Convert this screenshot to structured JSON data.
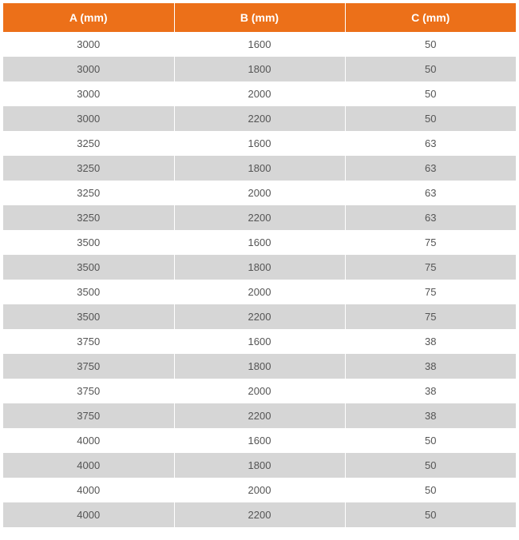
{
  "table": {
    "type": "table",
    "header_bg_color": "#ec7019",
    "header_text_color": "#ffffff",
    "header_fontsize": 14,
    "row_odd_bg": "#ffffff",
    "row_even_bg": "#d6d6d6",
    "cell_text_color": "#555555",
    "cell_fontsize": 13,
    "columns": [
      {
        "label": "A (mm)",
        "width": "33.33%",
        "align": "center"
      },
      {
        "label": "B (mm)",
        "width": "33.33%",
        "align": "center"
      },
      {
        "label": "C (mm)",
        "width": "33.33%",
        "align": "center"
      }
    ],
    "rows": [
      [
        "3000",
        "1600",
        "50"
      ],
      [
        "3000",
        "1800",
        "50"
      ],
      [
        "3000",
        "2000",
        "50"
      ],
      [
        "3000",
        "2200",
        "50"
      ],
      [
        "3250",
        "1600",
        "63"
      ],
      [
        "3250",
        "1800",
        "63"
      ],
      [
        "3250",
        "2000",
        "63"
      ],
      [
        "3250",
        "2200",
        "63"
      ],
      [
        "3500",
        "1600",
        "75"
      ],
      [
        "3500",
        "1800",
        "75"
      ],
      [
        "3500",
        "2000",
        "75"
      ],
      [
        "3500",
        "2200",
        "75"
      ],
      [
        "3750",
        "1600",
        "38"
      ],
      [
        "3750",
        "1800",
        "38"
      ],
      [
        "3750",
        "2000",
        "38"
      ],
      [
        "3750",
        "2200",
        "38"
      ],
      [
        "4000",
        "1600",
        "50"
      ],
      [
        "4000",
        "1800",
        "50"
      ],
      [
        "4000",
        "2000",
        "50"
      ],
      [
        "4000",
        "2200",
        "50"
      ]
    ]
  }
}
